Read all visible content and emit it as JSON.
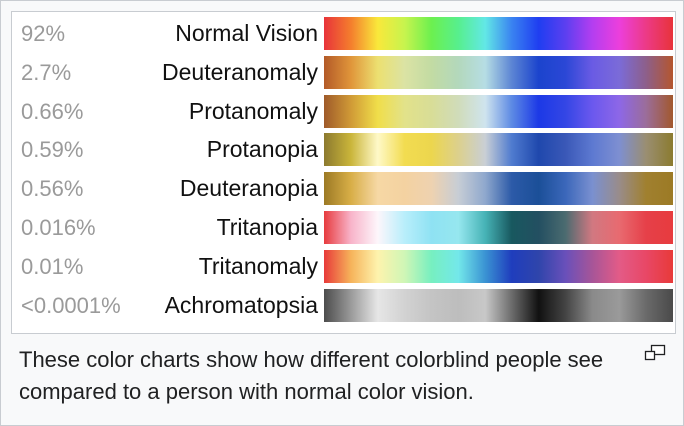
{
  "rows": [
    {
      "percent": "92%",
      "label": "Normal Vision",
      "colors": [
        "#e8333a",
        "#f47e2d",
        "#f9e83b",
        "#c7f44e",
        "#6cf04f",
        "#57ef8e",
        "#62e8e6",
        "#3a83f1",
        "#1f3ef1",
        "#5c3ff0",
        "#b43ef0",
        "#ec3fdc",
        "#ec3a86",
        "#e8333a"
      ]
    },
    {
      "percent": "2.7%",
      "label": "Deuteranomaly",
      "colors": [
        "#b35a28",
        "#e0953a",
        "#ece070",
        "#dbe3a4",
        "#c2dba3",
        "#b3d8bc",
        "#b6dde4",
        "#5c85d4",
        "#1b44cd",
        "#2b47d6",
        "#6a5be4",
        "#7b6bd8",
        "#8d5f8a",
        "#b4562e"
      ]
    },
    {
      "percent": "0.66%",
      "label": "Protanomaly",
      "colors": [
        "#9f5a2a",
        "#d09a36",
        "#f0de4a",
        "#e2e28a",
        "#d8dd97",
        "#d0dcba",
        "#cfe4ee",
        "#5d8ae4",
        "#1c39e6",
        "#3446e5",
        "#6b58ee",
        "#8d67e7",
        "#9b6d9a",
        "#a2582d"
      ]
    },
    {
      "percent": "0.59%",
      "label": "Protanopia",
      "colors": [
        "#8c7a2f",
        "#cab53a",
        "#fff9c8",
        "#f2dc50",
        "#ecd64e",
        "#dcd08d",
        "#c9cfd5",
        "#4f7bcf",
        "#1f48ad",
        "#3a58b7",
        "#5d79d1",
        "#7e8fd1",
        "#9a8e71",
        "#8b7b2f"
      ]
    },
    {
      "percent": "0.56%",
      "label": "Deuteranopia",
      "colors": [
        "#9c7a25",
        "#d8ae47",
        "#f6d8a5",
        "#f4d2a1",
        "#eed2b0",
        "#c7cdd5",
        "#8fa8cd",
        "#2c5aa8",
        "#1b4f98",
        "#3b67ba",
        "#7a90d0",
        "#998c8a",
        "#a0802f",
        "#9c7a25"
      ]
    },
    {
      "percent": "0.016%",
      "label": "Tritanopia",
      "colors": [
        "#e73b3e",
        "#f8b3c9",
        "#fdf6fb",
        "#b8eefb",
        "#8fe2f3",
        "#96e7ef",
        "#46b3b6",
        "#18585f",
        "#234f61",
        "#4b6b70",
        "#d17881",
        "#e86a70",
        "#e64049",
        "#e73b3e"
      ]
    },
    {
      "percent": "0.01%",
      "label": "Tritanomaly",
      "colors": [
        "#e83a39",
        "#f6b35a",
        "#fef3ad",
        "#cff6b6",
        "#77efc0",
        "#73e8ea",
        "#3a93d3",
        "#1f3dbd",
        "#2f45ab",
        "#6950ba",
        "#a75598",
        "#e35b87",
        "#e84766",
        "#e83a39"
      ]
    },
    {
      "percent": "<0.0001%",
      "label": "Achromatopsia",
      "colors": [
        "#4c4c4c",
        "#9a9a9a",
        "#e6e6e6",
        "#d2d2d2",
        "#c4c4c4",
        "#bdbdbd",
        "#c8c8c8",
        "#6c6c6c",
        "#111111",
        "#444444",
        "#8a8a8a",
        "#9a9a9a",
        "#6a6a6a",
        "#4a4a4a"
      ]
    }
  ],
  "caption": "These color charts show how different colorblind people see compared to a person with normal color vision.",
  "icons": {
    "enlarge": "magnify-clip-icon"
  },
  "colors": {
    "percent_text": "#9a9a9a",
    "label_text": "#111111",
    "frame_border": "#c8ccd1",
    "thumb_background": "#f8f9fa"
  }
}
